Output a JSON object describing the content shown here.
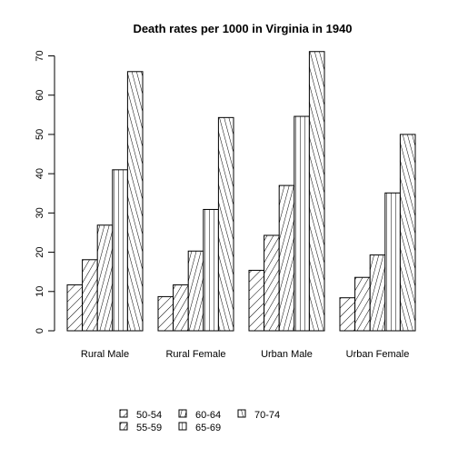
{
  "chart_data": {
    "type": "bar",
    "title": "Death rates per 1000 in Virginia in 1940",
    "xlabel": "",
    "ylabel": "",
    "ylim": [
      0,
      71
    ],
    "yticks": [
      "0",
      "10",
      "20",
      "30",
      "40",
      "50",
      "60",
      "70"
    ],
    "categories": [
      "Rural Male",
      "Rural Female",
      "Urban Male",
      "Urban Female"
    ],
    "series": [
      {
        "name": "50-54",
        "values": [
          11.7,
          8.7,
          15.4,
          8.4
        ]
      },
      {
        "name": "55-59",
        "values": [
          18.1,
          11.7,
          24.3,
          13.6
        ]
      },
      {
        "name": "60-64",
        "values": [
          26.9,
          20.3,
          37.0,
          19.3
        ]
      },
      {
        "name": "65-69",
        "values": [
          41.0,
          30.9,
          54.6,
          35.1
        ]
      },
      {
        "name": "70-74",
        "values": [
          66.0,
          54.3,
          71.1,
          50.0
        ]
      }
    ],
    "bar_style": "hatched, black outline",
    "legend_position": "bottom",
    "grid": false
  }
}
